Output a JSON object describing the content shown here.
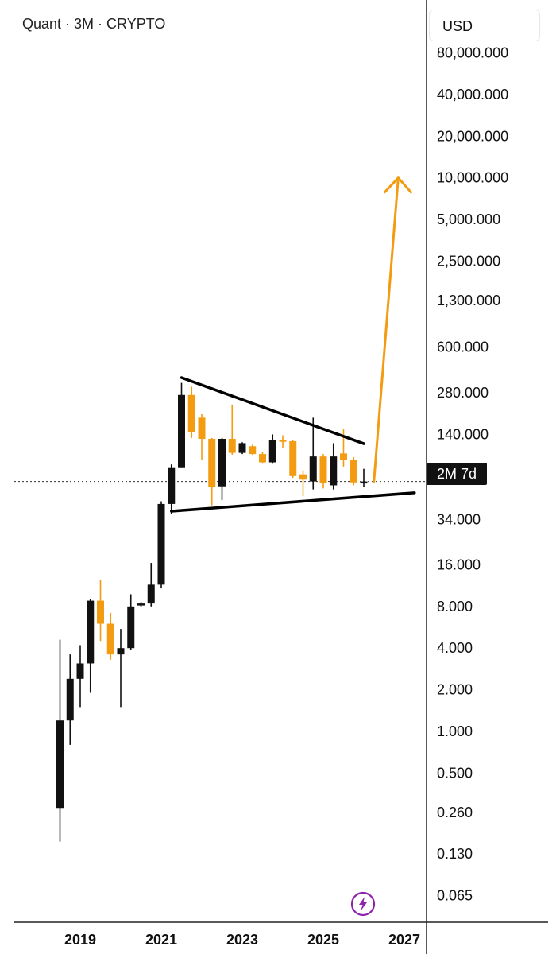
{
  "header": {
    "title": "Quant · 3M · CRYPTO",
    "currency": "USD"
  },
  "price_tag": "2M 7d",
  "colors": {
    "bull": "#111111",
    "bear": "#f39c12",
    "arrow": "#f39c12",
    "trendline": "#000000",
    "axis": "#222222"
  },
  "icons": {
    "bottom_button": "lightning-bolt-icon"
  },
  "chart_data": {
    "type": "candlestick",
    "title": "Quant · 3M · CRYPTO",
    "y_scale": "log",
    "y_ticks": [
      {
        "value": 80000,
        "label": "80,000.000"
      },
      {
        "value": 40000,
        "label": "40,000.000"
      },
      {
        "value": 20000,
        "label": "20,000.000"
      },
      {
        "value": 10000,
        "label": "10,000.000"
      },
      {
        "value": 5000,
        "label": "5,000.000"
      },
      {
        "value": 2500,
        "label": "2,500.000"
      },
      {
        "value": 1300,
        "label": "1,300.000"
      },
      {
        "value": 600,
        "label": "600.000"
      },
      {
        "value": 280,
        "label": "280.000"
      },
      {
        "value": 140,
        "label": "140.000"
      },
      {
        "value": 34,
        "label": "34.000"
      },
      {
        "value": 16,
        "label": "16.000"
      },
      {
        "value": 8,
        "label": "8.000"
      },
      {
        "value": 4,
        "label": "4.000"
      },
      {
        "value": 2,
        "label": "2.000"
      },
      {
        "value": 1,
        "label": "1.000"
      },
      {
        "value": 0.5,
        "label": "0.500"
      },
      {
        "value": 0.26,
        "label": "0.260"
      },
      {
        "value": 0.13,
        "label": "0.130"
      },
      {
        "value": 0.065,
        "label": "0.065"
      }
    ],
    "x_ticks": [
      {
        "value": 2019,
        "label": "2019"
      },
      {
        "value": 2021,
        "label": "2021"
      },
      {
        "value": 2023,
        "label": "2023"
      },
      {
        "value": 2025,
        "label": "2025"
      },
      {
        "value": 2027,
        "label": "2027"
      }
    ],
    "candles": [
      {
        "t": 2018.5,
        "o": 0.28,
        "h": 4.6,
        "l": 0.16,
        "c": 1.2,
        "dir": "up"
      },
      {
        "t": 2018.75,
        "o": 1.2,
        "h": 3.6,
        "l": 0.8,
        "c": 2.4,
        "dir": "up"
      },
      {
        "t": 2019.0,
        "o": 2.4,
        "h": 4.2,
        "l": 1.5,
        "c": 3.1,
        "dir": "up"
      },
      {
        "t": 2019.25,
        "o": 3.1,
        "h": 9.0,
        "l": 1.9,
        "c": 8.8,
        "dir": "up"
      },
      {
        "t": 2019.5,
        "o": 8.8,
        "h": 12.5,
        "l": 4.5,
        "c": 6.0,
        "dir": "down"
      },
      {
        "t": 2019.75,
        "o": 6.0,
        "h": 7.2,
        "l": 3.3,
        "c": 3.6,
        "dir": "down"
      },
      {
        "t": 2020.0,
        "o": 3.6,
        "h": 5.5,
        "l": 1.5,
        "c": 4.0,
        "dir": "up"
      },
      {
        "t": 2020.25,
        "o": 4.0,
        "h": 9.8,
        "l": 3.9,
        "c": 8.0,
        "dir": "up"
      },
      {
        "t": 2020.5,
        "o": 8.3,
        "h": 8.6,
        "l": 7.9,
        "c": 8.4,
        "dir": "up"
      },
      {
        "t": 2020.75,
        "o": 8.4,
        "h": 16.5,
        "l": 8.0,
        "c": 11.5,
        "dir": "up"
      },
      {
        "t": 2021.0,
        "o": 11.5,
        "h": 46,
        "l": 10.8,
        "c": 44,
        "dir": "up"
      },
      {
        "t": 2021.25,
        "o": 44,
        "h": 85,
        "l": 37,
        "c": 80,
        "dir": "up"
      },
      {
        "t": 2021.5,
        "o": 80,
        "h": 330,
        "l": 80,
        "c": 270,
        "dir": "up"
      },
      {
        "t": 2021.75,
        "o": 270,
        "h": 310,
        "l": 132,
        "c": 145,
        "dir": "down"
      },
      {
        "t": 2022.0,
        "o": 185,
        "h": 196,
        "l": 92,
        "c": 130,
        "dir": "down"
      },
      {
        "t": 2022.25,
        "o": 130,
        "h": 132,
        "l": 43,
        "c": 58,
        "dir": "down"
      },
      {
        "t": 2022.5,
        "o": 59,
        "h": 132,
        "l": 47,
        "c": 130,
        "dir": "up"
      },
      {
        "t": 2022.75,
        "o": 130,
        "h": 230,
        "l": 100,
        "c": 103,
        "dir": "down"
      },
      {
        "t": 2023.0,
        "o": 103,
        "h": 123,
        "l": 101,
        "c": 121,
        "dir": "up"
      },
      {
        "t": 2023.25,
        "o": 115,
        "h": 118,
        "l": 100,
        "c": 101,
        "dir": "down"
      },
      {
        "t": 2023.5,
        "o": 101,
        "h": 104,
        "l": 86,
        "c": 88,
        "dir": "down"
      },
      {
        "t": 2023.75,
        "o": 88,
        "h": 140,
        "l": 86,
        "c": 127,
        "dir": "up"
      },
      {
        "t": 2024.0,
        "o": 127,
        "h": 138,
        "l": 112,
        "c": 128,
        "dir": "down"
      },
      {
        "t": 2024.25,
        "o": 125,
        "h": 128,
        "l": 68,
        "c": 70,
        "dir": "down"
      },
      {
        "t": 2024.5,
        "o": 72,
        "h": 77,
        "l": 50,
        "c": 66,
        "dir": "down"
      },
      {
        "t": 2024.75,
        "o": 64,
        "h": 185,
        "l": 56,
        "c": 97,
        "dir": "up"
      },
      {
        "t": 2025.0,
        "o": 97,
        "h": 101,
        "l": 57,
        "c": 62,
        "dir": "down"
      },
      {
        "t": 2025.25,
        "o": 60,
        "h": 121,
        "l": 56,
        "c": 97,
        "dir": "up"
      },
      {
        "t": 2025.5,
        "o": 102,
        "h": 153,
        "l": 82,
        "c": 92,
        "dir": "down"
      },
      {
        "t": 2025.75,
        "o": 92,
        "h": 96,
        "l": 60,
        "c": 63,
        "dir": "down"
      },
      {
        "t": 2026.0,
        "o": 64,
        "h": 79,
        "l": 58,
        "c": 62,
        "dir": "up"
      }
    ],
    "trendlines": [
      {
        "name": "upper",
        "from": {
          "t": 2021.5,
          "v": 360
        },
        "to": {
          "t": 2026.0,
          "v": 120
        }
      },
      {
        "name": "lower",
        "from": {
          "t": 2021.25,
          "v": 39
        },
        "to": {
          "t": 2027.25,
          "v": 53
        }
      }
    ],
    "projection": {
      "from": {
        "t": 2026.25,
        "v": 64
      },
      "to": {
        "t": 2026.85,
        "v": 10000
      }
    },
    "current_price_line": {
      "v": 64
    }
  }
}
